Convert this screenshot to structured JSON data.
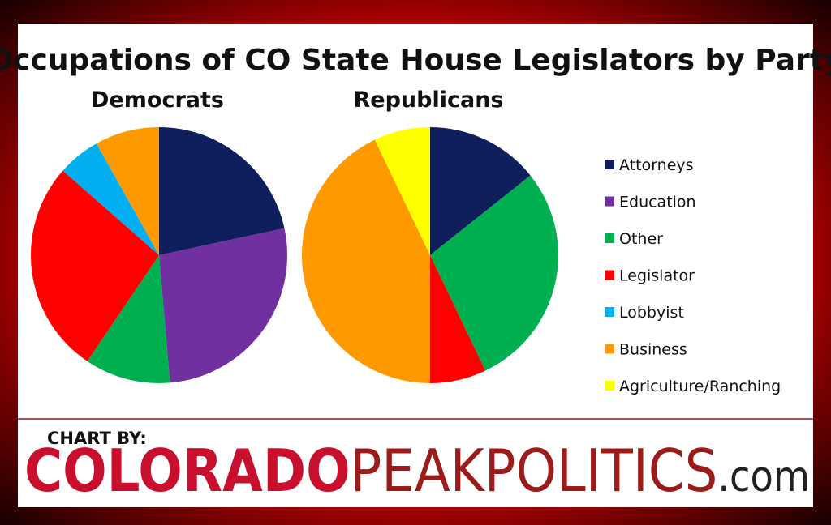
{
  "title": "Occupations of CO State House Legislators by Party",
  "legend": [
    {
      "name": "Attorneys",
      "color": "#0e1f5b"
    },
    {
      "name": "Education",
      "color": "#7030a0"
    },
    {
      "name": "Other",
      "color": "#00b050"
    },
    {
      "name": "Legislator",
      "color": "#ff0000"
    },
    {
      "name": "Lobbyist",
      "color": "#00b0f0"
    },
    {
      "name": "Business",
      "color": "#ff9900"
    },
    {
      "name": "Agriculture/Ranching",
      "color": "#ffff00"
    }
  ],
  "chart_data": [
    {
      "type": "pie",
      "title": "Democrats",
      "categories": [
        "Attorneys",
        "Education",
        "Other",
        "Legislator",
        "Lobbyist",
        "Business"
      ],
      "values": [
        21.6,
        27,
        10.8,
        27,
        5.4,
        8.1
      ],
      "colors": [
        "#0e1f5b",
        "#7030a0",
        "#00b050",
        "#ff0000",
        "#00b0f0",
        "#ff9900"
      ]
    },
    {
      "type": "pie",
      "title": "Republicans",
      "categories": [
        "Attorneys",
        "Other",
        "Legislator",
        "Business",
        "Agriculture/Ranching"
      ],
      "values": [
        14.3,
        28.6,
        7.1,
        42.9,
        7.1
      ],
      "colors": [
        "#0e1f5b",
        "#00b050",
        "#ff0000",
        "#ff9900",
        "#ffff00"
      ]
    }
  ],
  "credit": {
    "label": "CHART BY:",
    "brand_a": "COLORADO",
    "brand_b": "PEAKPOLITICS",
    "brand_c": ".com"
  }
}
